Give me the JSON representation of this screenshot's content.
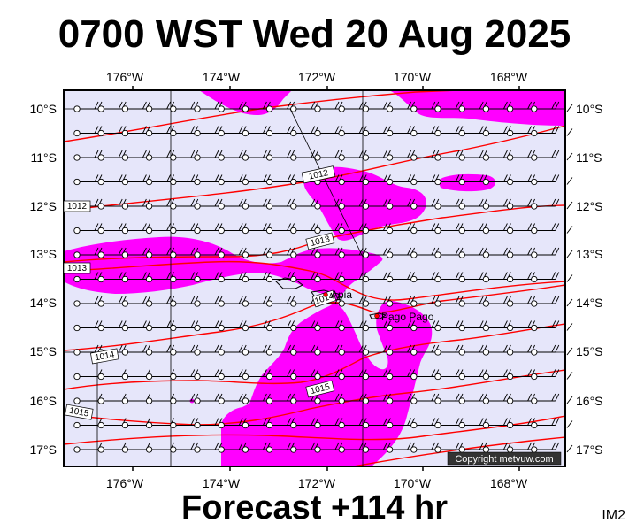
{
  "header": {
    "title": "0700 WST Wed 20 Aug 2025"
  },
  "footer": {
    "forecast": "Forecast +114 hr",
    "product_code": "IM2"
  },
  "map": {
    "lon_labels": [
      "176°W",
      "174°W",
      "172°W",
      "170°W",
      "168°W"
    ],
    "lat_labels": [
      "10°S",
      "11°S",
      "12°S",
      "13°S",
      "14°S",
      "15°S",
      "16°S",
      "17°S"
    ],
    "isobar_labels": [
      "1012",
      "1012",
      "1013",
      "1013",
      "1014",
      "1014",
      "1015",
      "1015"
    ],
    "places": {
      "apia": "Apia",
      "pago_pago": "Pago Pago"
    },
    "copyright": "Copyright metvuw.com",
    "colors": {
      "ocean": "#e6e6fa",
      "rain": "#ff00ff",
      "isobar": "#ff0000",
      "frame": "#000000"
    }
  }
}
